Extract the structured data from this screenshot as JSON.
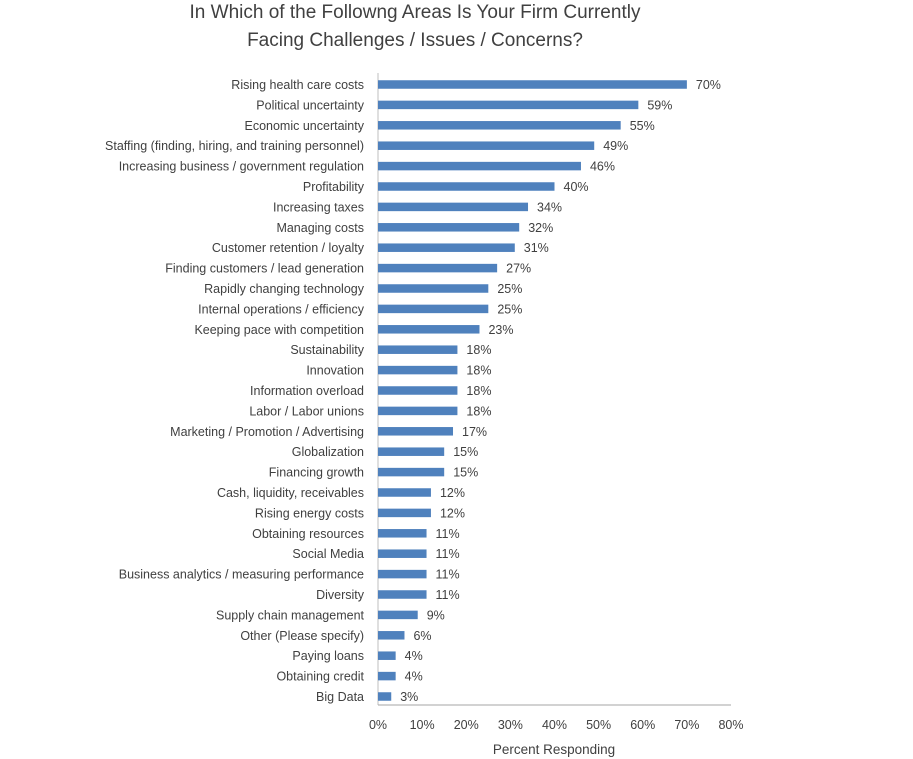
{
  "chart_data": {
    "type": "bar",
    "orientation": "horizontal",
    "title_lines": [
      "In Which of the Followng Areas Is Your Firm Currently",
      "Facing Challenges / Issues / Concerns?"
    ],
    "xlabel": "Percent Responding",
    "ylabel": "",
    "xlim": [
      0,
      80
    ],
    "xticks": [
      "0%",
      "10%",
      "20%",
      "30%",
      "40%",
      "50%",
      "60%",
      "70%",
      "80%"
    ],
    "tick_values": [
      0,
      10,
      20,
      30,
      40,
      50,
      60,
      70,
      80
    ],
    "grid": false,
    "bar_color": "#4f81bd",
    "categories": [
      "Rising health care costs",
      "Political uncertainty",
      "Economic uncertainty",
      "Staffing (finding, hiring, and training personnel)",
      "Increasing business / government regulation",
      "Profitability",
      "Increasing taxes",
      "Managing costs",
      "Customer retention / loyalty",
      "Finding customers / lead generation",
      "Rapidly changing technology",
      "Internal operations / efficiency",
      "Keeping pace with competition",
      "Sustainability",
      "Innovation",
      "Information overload",
      "Labor / Labor unions",
      "Marketing / Promotion / Advertising",
      "Globalization",
      "Financing growth",
      "Cash, liquidity, receivables",
      "Rising energy costs",
      "Obtaining resources",
      "Social Media",
      "Business analytics / measuring performance",
      "Diversity",
      "Supply chain management",
      "Other (Please specify)",
      "Paying loans",
      "Obtaining credit",
      "Big Data"
    ],
    "values": [
      70,
      59,
      55,
      49,
      46,
      40,
      34,
      32,
      31,
      27,
      25,
      25,
      23,
      18,
      18,
      18,
      18,
      17,
      15,
      15,
      12,
      12,
      11,
      11,
      11,
      11,
      9,
      6,
      4,
      4,
      3
    ],
    "value_labels": [
      "70%",
      "59%",
      "55%",
      "49%",
      "46%",
      "40%",
      "34%",
      "32%",
      "31%",
      "27%",
      "25%",
      "25%",
      "23%",
      "18%",
      "18%",
      "18%",
      "18%",
      "17%",
      "15%",
      "15%",
      "12%",
      "12%",
      "11%",
      "11%",
      "11%",
      "11%",
      "9%",
      "6%",
      "4%",
      "4%",
      "3%"
    ]
  }
}
